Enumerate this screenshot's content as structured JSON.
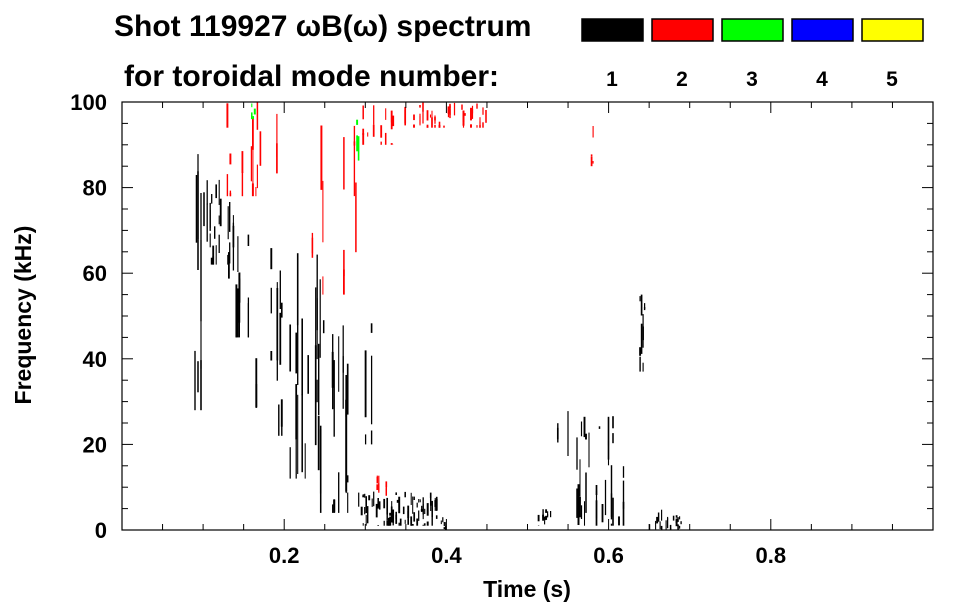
{
  "chart_data": {
    "type": "heatmap",
    "title": "Shot 119927 ωB(ω) spectrum",
    "subtitle": "for toroidal mode number:",
    "xlabel": "Time (s)",
    "ylabel": "Frequency (kHz)",
    "xlim": [
      0.0,
      1.0
    ],
    "ylim": [
      0,
      100
    ],
    "x_ticks": [
      0.2,
      0.4,
      0.6,
      0.8
    ],
    "x_tick_labels": [
      "0.2",
      "0.4",
      "0.6",
      "0.8"
    ],
    "y_ticks": [
      0,
      20,
      40,
      60,
      80,
      100
    ],
    "y_tick_labels": [
      "0",
      "20",
      "40",
      "60",
      "80",
      "100"
    ],
    "grid": false,
    "legend_placement": "top-right",
    "legend": [
      {
        "mode": "1",
        "color": "#000000"
      },
      {
        "mode": "2",
        "color": "#ff0000"
      },
      {
        "mode": "3",
        "color": "#00ff00"
      },
      {
        "mode": "4",
        "color": "#0000ff"
      },
      {
        "mode": "5",
        "color": "#ffff00"
      }
    ],
    "regions": [
      {
        "mode": "1",
        "t": [
          0.09,
          0.105
        ],
        "f": [
          28,
          100
        ],
        "density": 0.55
      },
      {
        "mode": "1",
        "t": [
          0.105,
          0.135
        ],
        "f": [
          62,
          82
        ],
        "density": 0.7
      },
      {
        "mode": "1",
        "t": [
          0.13,
          0.16
        ],
        "f": [
          45,
          80
        ],
        "density": 0.3
      },
      {
        "mode": "1",
        "t": [
          0.16,
          0.2
        ],
        "f": [
          22,
          68
        ],
        "density": 0.4
      },
      {
        "mode": "1",
        "t": [
          0.2,
          0.245
        ],
        "f": [
          12,
          65
        ],
        "density": 0.45
      },
      {
        "mode": "1",
        "t": [
          0.245,
          0.28
        ],
        "f": [
          4,
          52
        ],
        "density": 0.4
      },
      {
        "mode": "1",
        "t": [
          0.28,
          0.31
        ],
        "f": [
          20,
          55
        ],
        "density": 0.2
      },
      {
        "mode": "1",
        "t": [
          0.29,
          0.39
        ],
        "f": [
          1,
          9
        ],
        "density": 0.75
      },
      {
        "mode": "1",
        "t": [
          0.39,
          0.4
        ],
        "f": [
          0,
          3
        ],
        "density": 0.6
      },
      {
        "mode": "1",
        "t": [
          0.51,
          0.53
        ],
        "f": [
          1,
          5
        ],
        "density": 0.5
      },
      {
        "mode": "1",
        "t": [
          0.53,
          0.545
        ],
        "f": [
          18,
          27
        ],
        "density": 0.4
      },
      {
        "mode": "1",
        "t": [
          0.55,
          0.62
        ],
        "f": [
          1,
          29
        ],
        "density": 0.4
      },
      {
        "mode": "1",
        "t": [
          0.637,
          0.648
        ],
        "f": [
          37,
          55
        ],
        "density": 0.6
      },
      {
        "mode": "1",
        "t": [
          0.645,
          0.69
        ],
        "f": [
          0,
          5
        ],
        "density": 0.6
      },
      {
        "mode": "2",
        "t": [
          0.13,
          0.2
        ],
        "f": [
          78,
          100
        ],
        "density": 0.3
      },
      {
        "mode": "2",
        "t": [
          0.22,
          0.29
        ],
        "f": [
          55,
          95
        ],
        "density": 0.15
      },
      {
        "mode": "2",
        "t": [
          0.29,
          0.35
        ],
        "f": [
          90,
          100
        ],
        "density": 0.25
      },
      {
        "mode": "2",
        "t": [
          0.36,
          0.45
        ],
        "f": [
          94,
          100
        ],
        "density": 0.5
      },
      {
        "mode": "2",
        "t": [
          0.3,
          0.33
        ],
        "f": [
          8,
          13
        ],
        "density": 0.25
      },
      {
        "mode": "2",
        "t": [
          0.579,
          0.581
        ],
        "f": [
          85,
          95
        ],
        "density": 1.0
      },
      {
        "mode": "3",
        "t": [
          0.288,
          0.292
        ],
        "f": [
          85,
          97
        ],
        "density": 0.7
      },
      {
        "mode": "3",
        "t": [
          0.16,
          0.165
        ],
        "f": [
          96,
          100
        ],
        "density": 0.6
      }
    ]
  }
}
